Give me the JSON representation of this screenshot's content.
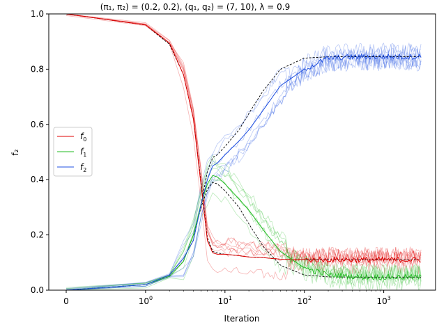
{
  "chart_data": {
    "type": "line",
    "title": "(π₁, π₂) = (0.2, 0.2),  (q₁, q₂) = (7, 10),  λ = 0.9",
    "xlabel": "Iteration",
    "ylabel": "f₂",
    "x_scale": "symlog",
    "xlim": [
      0,
      3000
    ],
    "ylim": [
      0,
      1
    ],
    "x_ticks": [
      {
        "value": 0,
        "label": "0",
        "sup": ""
      },
      {
        "value": 1,
        "label": "10",
        "sup": "0"
      },
      {
        "value": 10,
        "label": "10",
        "sup": "1"
      },
      {
        "value": 100,
        "label": "10",
        "sup": "2"
      },
      {
        "value": 1000,
        "label": "10",
        "sup": "3"
      }
    ],
    "y_ticks": [
      "0.0",
      "0.2",
      "0.4",
      "0.6",
      "0.8",
      "1.0"
    ],
    "y_tick_values": [
      0,
      0.2,
      0.4,
      0.6,
      0.8,
      1.0
    ],
    "grid": false,
    "legend_position": "center-left",
    "series": [
      {
        "name": "f₀",
        "label_main": "f",
        "label_sub": "0",
        "color": "#e00000",
        "x": [
          0,
          1,
          2,
          3,
          4,
          5,
          6,
          7,
          8,
          10,
          15,
          20,
          30,
          50,
          100,
          200,
          500,
          1000,
          3000
        ],
        "values": [
          1.0,
          0.96,
          0.895,
          0.78,
          0.62,
          0.38,
          0.18,
          0.135,
          0.13,
          0.13,
          0.125,
          0.12,
          0.118,
          0.112,
          0.11,
          0.11,
          0.11,
          0.11,
          0.11
        ]
      },
      {
        "name": "f₁",
        "label_main": "f",
        "label_sub": "1",
        "color": "#22bb22",
        "x": [
          0,
          1,
          2,
          3,
          4,
          5,
          6,
          7,
          8,
          10,
          15,
          20,
          30,
          50,
          100,
          200,
          500,
          1000,
          3000
        ],
        "values": [
          0.0,
          0.02,
          0.05,
          0.105,
          0.2,
          0.31,
          0.385,
          0.415,
          0.41,
          0.385,
          0.33,
          0.29,
          0.22,
          0.14,
          0.08,
          0.055,
          0.048,
          0.047,
          0.047
        ]
      },
      {
        "name": "f₂",
        "label_main": "f",
        "label_sub": "2",
        "color": "#1f4fe0",
        "x": [
          0,
          1,
          2,
          3,
          4,
          5,
          6,
          7,
          8,
          10,
          15,
          20,
          30,
          50,
          100,
          200,
          500,
          1000,
          3000
        ],
        "values": [
          0.0,
          0.02,
          0.055,
          0.115,
          0.18,
          0.31,
          0.4,
          0.45,
          0.46,
          0.49,
          0.54,
          0.58,
          0.65,
          0.74,
          0.8,
          0.84,
          0.845,
          0.845,
          0.845
        ]
      }
    ],
    "reference": [
      {
        "style": "dashed",
        "color": "#000000",
        "x": [
          0,
          1,
          2,
          3,
          4,
          5,
          6,
          7,
          8,
          10,
          15,
          20,
          30,
          50,
          100,
          200,
          500,
          1000,
          3000
        ],
        "values": [
          1.0,
          0.96,
          0.89,
          0.78,
          0.62,
          0.39,
          0.19,
          0.14,
          0.135,
          0.13,
          0.125,
          0.12,
          0.118,
          0.112,
          0.11,
          0.11,
          0.11,
          0.11,
          0.11
        ]
      },
      {
        "style": "dashed",
        "color": "#000000",
        "x": [
          0,
          1,
          2,
          3,
          4,
          5,
          6,
          7,
          8,
          10,
          15,
          20,
          30,
          50,
          100,
          200,
          500,
          1000,
          3000
        ],
        "values": [
          0.0,
          0.02,
          0.05,
          0.105,
          0.2,
          0.3,
          0.365,
          0.39,
          0.385,
          0.36,
          0.3,
          0.24,
          0.16,
          0.09,
          0.055,
          0.048,
          0.047,
          0.047,
          0.047
        ]
      },
      {
        "style": "dashed",
        "color": "#000000",
        "x": [
          0,
          1,
          2,
          3,
          4,
          5,
          6,
          7,
          8,
          10,
          15,
          20,
          30,
          50,
          100,
          200,
          500,
          1000,
          3000
        ],
        "values": [
          0.0,
          0.02,
          0.055,
          0.115,
          0.18,
          0.31,
          0.43,
          0.48,
          0.49,
          0.52,
          0.58,
          0.64,
          0.72,
          0.8,
          0.84,
          0.845,
          0.845,
          0.845,
          0.845
        ]
      }
    ]
  }
}
